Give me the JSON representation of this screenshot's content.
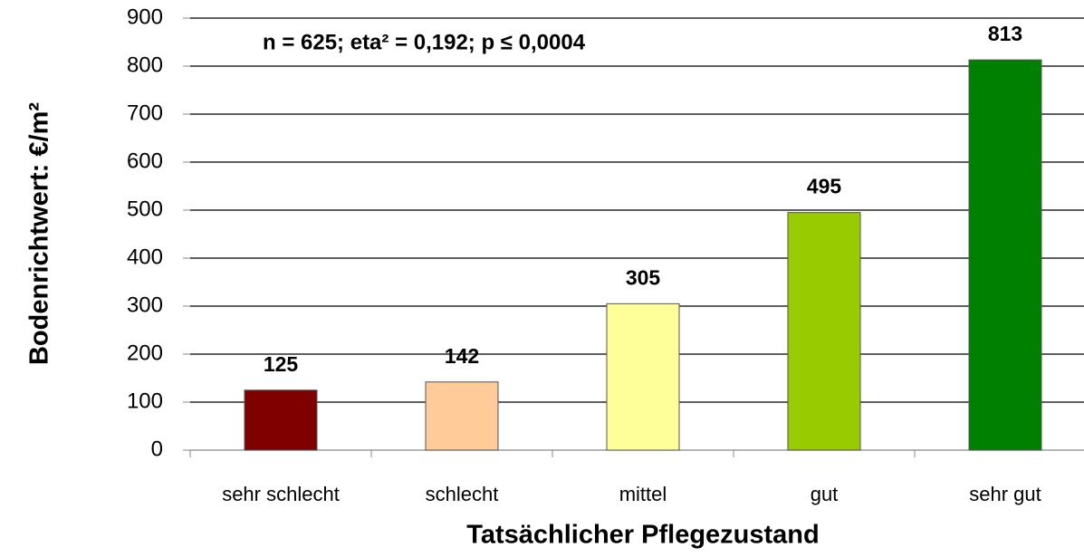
{
  "chart_data": {
    "type": "bar",
    "annotation": "n = 625;  eta² = 0,192; p ≤ 0,0004",
    "ylabel": "Bodenrichtwert: €/m²",
    "xlabel": "Tatsächlicher Pflegezustand",
    "categories": [
      "sehr schlecht",
      "schlecht",
      "mittel",
      "gut",
      "sehr gut"
    ],
    "values": [
      125,
      142,
      305,
      495,
      813
    ],
    "colors": [
      "#800000",
      "#ffcc99",
      "#ffff99",
      "#99cc00",
      "#008000"
    ],
    "ylim": [
      0,
      900
    ],
    "yticks": [
      0,
      100,
      200,
      300,
      400,
      500,
      600,
      700,
      800,
      900
    ],
    "grid": true,
    "data_labels": true
  }
}
